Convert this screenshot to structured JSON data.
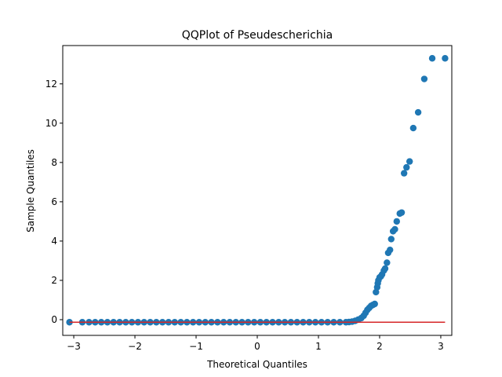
{
  "chart_data": {
    "type": "scatter",
    "title": "QQPlot of Pseudescherichia",
    "xlabel": "Theoretical Quantiles",
    "ylabel": "Sample Quantiles",
    "xlim": [
      -3.18,
      3.18
    ],
    "ylim": [
      -0.8,
      13.95
    ],
    "xticks": [
      -3,
      -2,
      -1,
      0,
      1,
      2,
      3
    ],
    "xtick_labels": [
      "−3",
      "−2",
      "−1",
      "0",
      "1",
      "2",
      "3"
    ],
    "yticks": [
      0,
      2,
      4,
      6,
      8,
      10,
      12
    ],
    "ytick_labels": [
      "0",
      "2",
      "4",
      "6",
      "8",
      "10",
      "12"
    ],
    "grid": false,
    "series": [
      {
        "kind": "points",
        "color": "#1f77b4",
        "x": [
          -3.07,
          -2.86,
          -2.75,
          -2.65,
          -2.55,
          -2.45,
          -2.35,
          -2.25,
          -2.15,
          -2.05,
          -1.95,
          -1.85,
          -1.75,
          -1.65,
          -1.55,
          -1.45,
          -1.35,
          -1.25,
          -1.15,
          -1.05,
          -0.95,
          -0.85,
          -0.75,
          -0.65,
          -0.55,
          -0.45,
          -0.35,
          -0.25,
          -0.15,
          -0.05,
          0.05,
          0.15,
          0.25,
          0.35,
          0.45,
          0.55,
          0.65,
          0.75,
          0.85,
          0.95,
          1.05,
          1.15,
          1.25,
          1.35,
          1.45,
          1.5,
          1.55,
          1.6,
          1.65,
          1.7,
          1.74,
          1.77,
          1.8,
          1.83,
          1.86,
          1.89,
          1.92,
          1.94,
          1.96,
          1.97,
          1.98,
          2.0,
          2.02,
          2.04,
          2.07,
          2.09,
          2.12,
          2.14,
          2.17,
          2.19,
          2.22,
          2.25,
          2.28,
          2.33,
          2.36,
          2.4,
          2.44,
          2.49,
          2.55,
          2.63,
          2.73,
          2.86,
          3.07
        ],
        "y": [
          -0.13,
          -0.13,
          -0.13,
          -0.13,
          -0.13,
          -0.13,
          -0.13,
          -0.13,
          -0.13,
          -0.13,
          -0.13,
          -0.13,
          -0.13,
          -0.13,
          -0.13,
          -0.13,
          -0.13,
          -0.13,
          -0.13,
          -0.13,
          -0.13,
          -0.13,
          -0.13,
          -0.13,
          -0.13,
          -0.13,
          -0.13,
          -0.13,
          -0.13,
          -0.13,
          -0.13,
          -0.13,
          -0.13,
          -0.13,
          -0.13,
          -0.13,
          -0.13,
          -0.13,
          -0.13,
          -0.13,
          -0.13,
          -0.13,
          -0.13,
          -0.13,
          -0.13,
          -0.12,
          -0.1,
          -0.06,
          0.0,
          0.08,
          0.2,
          0.35,
          0.5,
          0.6,
          0.7,
          0.75,
          0.8,
          1.4,
          1.65,
          1.85,
          2.0,
          2.15,
          2.2,
          2.3,
          2.5,
          2.6,
          2.9,
          3.4,
          3.55,
          4.1,
          4.5,
          4.6,
          5.0,
          5.4,
          5.45,
          7.45,
          7.75,
          8.05,
          9.75,
          10.55,
          12.25,
          13.3,
          13.3
        ]
      },
      {
        "kind": "line",
        "color": "#d62728",
        "x": [
          -3.07,
          3.07
        ],
        "y": [
          -0.13,
          -0.13
        ]
      }
    ]
  }
}
